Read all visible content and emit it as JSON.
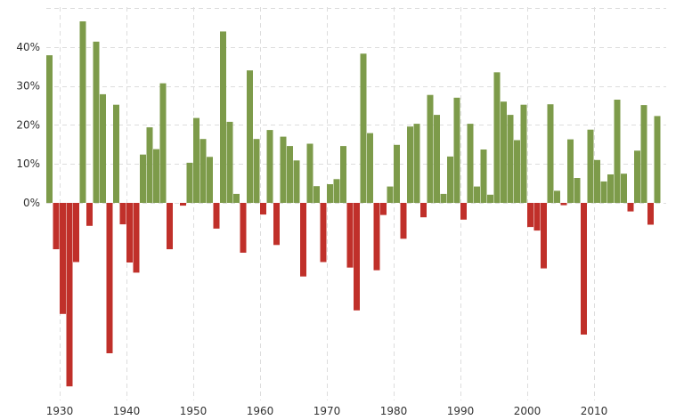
{
  "chart_data": {
    "type": "bar",
    "title": "",
    "xlabel": "",
    "ylabel": "",
    "ylim": [
      -47,
      47
    ],
    "y_ticks": [
      0,
      10,
      20,
      30,
      40
    ],
    "y_tick_labels": [
      "0%",
      "10%",
      "20%",
      "30%",
      "40%"
    ],
    "x_ticks": [
      1930,
      1940,
      1950,
      1960,
      1970,
      1980,
      1990,
      2000,
      2010
    ],
    "x_tick_labels": [
      "1930",
      "1940",
      "1950",
      "1960",
      "1970",
      "1980",
      "1990",
      "2000",
      "2010"
    ],
    "grid": true,
    "colors": {
      "positive": "#7d9b4a",
      "negative": "#c0302a"
    },
    "categories": [
      1928,
      1929,
      1930,
      1931,
      1932,
      1933,
      1934,
      1935,
      1936,
      1937,
      1938,
      1939,
      1940,
      1941,
      1942,
      1943,
      1944,
      1945,
      1946,
      1947,
      1948,
      1949,
      1950,
      1951,
      1952,
      1953,
      1954,
      1955,
      1956,
      1957,
      1958,
      1959,
      1960,
      1961,
      1962,
      1963,
      1964,
      1965,
      1966,
      1967,
      1968,
      1969,
      1970,
      1971,
      1972,
      1973,
      1974,
      1975,
      1976,
      1977,
      1978,
      1979,
      1980,
      1981,
      1982,
      1983,
      1984,
      1985,
      1986,
      1987,
      1988,
      1989,
      1990,
      1991,
      1992,
      1993,
      1994,
      1995,
      1996,
      1997,
      1998,
      1999,
      2000,
      2001,
      2002,
      2003,
      2004,
      2005,
      2006,
      2007,
      2008,
      2009,
      2010,
      2011,
      2012,
      2013,
      2014,
      2015,
      2016,
      2017,
      2018,
      2019
    ],
    "values": [
      37.9,
      -11.9,
      -28.5,
      -47.1,
      -15.2,
      46.6,
      -5.9,
      41.4,
      27.9,
      -38.6,
      25.2,
      -5.5,
      -15.3,
      -17.9,
      12.4,
      19.4,
      13.8,
      30.7,
      -11.9,
      0.0,
      -0.7,
      10.3,
      21.8,
      16.4,
      11.8,
      -6.6,
      44.0,
      20.8,
      2.3,
      -12.8,
      34.0,
      16.4,
      -3.0,
      18.7,
      -10.8,
      17.0,
      14.6,
      10.9,
      -18.9,
      15.2,
      4.3,
      -15.2,
      4.8,
      6.1,
      14.6,
      -16.6,
      -27.6,
      38.3,
      17.9,
      -17.3,
      -3.1,
      4.2,
      14.9,
      -9.2,
      19.6,
      20.3,
      -3.7,
      27.7,
      22.6,
      2.3,
      11.9,
      27.0,
      -4.3,
      20.3,
      4.2,
      13.7,
      2.1,
      33.5,
      26.0,
      22.6,
      16.1,
      25.2,
      -6.2,
      -7.1,
      -16.8,
      25.3,
      3.1,
      -0.6,
      16.3,
      6.4,
      -33.8,
      18.8,
      11.0,
      5.5,
      7.3,
      26.5,
      7.5,
      -2.2,
      13.4,
      25.1,
      -5.6,
      22.3
    ]
  }
}
